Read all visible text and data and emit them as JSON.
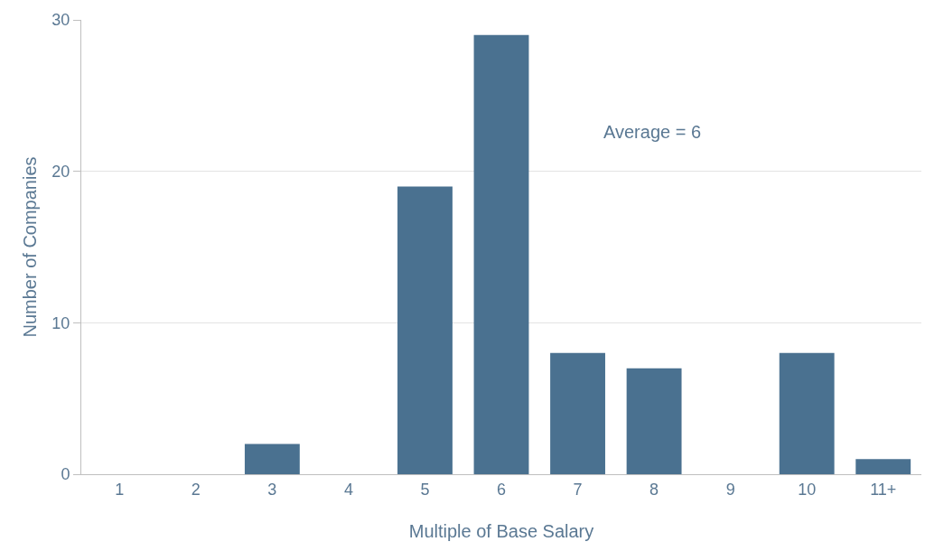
{
  "chart_data": {
    "type": "bar",
    "xlabel": "Multiple of Base Salary",
    "ylabel": "Number of Companies",
    "categories": [
      "1",
      "2",
      "3",
      "4",
      "5",
      "6",
      "7",
      "8",
      "9",
      "10",
      "11+"
    ],
    "values": [
      0,
      0,
      2,
      0,
      19,
      29,
      8,
      7,
      0,
      8,
      1
    ],
    "color": "#4a7190",
    "ylim": [
      0,
      30
    ],
    "yticks": [
      0,
      10,
      20,
      30
    ],
    "grid": "y",
    "annotations": [
      "Average = 6"
    ]
  }
}
